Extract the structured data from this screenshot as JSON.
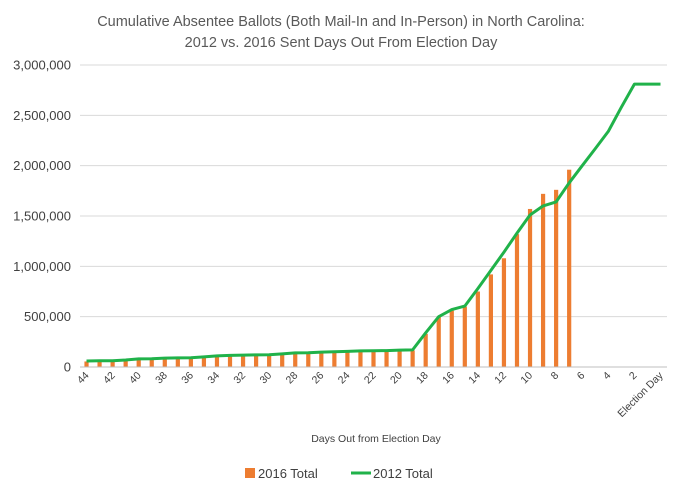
{
  "chart_data": {
    "type": "bar+line",
    "title": [
      "Cumulative Absentee Ballots (Both Mail-In and In-Person) in North Carolina:",
      "2012 vs. 2016 Sent Days Out From Election Day"
    ],
    "xlabel": "Days Out from Election Day",
    "ylabel": "",
    "ylim": [
      0,
      3000000
    ],
    "yticks": [
      0,
      500000,
      1000000,
      1500000,
      2000000,
      2500000,
      3000000
    ],
    "ytick_labels": [
      "0",
      "500,000",
      "1,000,000",
      "1,500,000",
      "2,000,000",
      "2,500,000",
      "3,000,000"
    ],
    "categories": [
      "44",
      "43",
      "42",
      "41",
      "40",
      "39",
      "38",
      "37",
      "36",
      "35",
      "34",
      "33",
      "32",
      "31",
      "30",
      "29",
      "28",
      "27",
      "26",
      "25",
      "24",
      "23",
      "22",
      "21",
      "20",
      "19",
      "18",
      "17",
      "16",
      "15",
      "14",
      "13",
      "12",
      "11",
      "10",
      "9",
      "8",
      "7",
      "6",
      "5",
      "4",
      "3",
      "2",
      "1",
      "Election Day"
    ],
    "x_tick_labels": [
      "44",
      "42",
      "40",
      "38",
      "36",
      "34",
      "32",
      "30",
      "28",
      "26",
      "24",
      "22",
      "20",
      "18",
      "16",
      "14",
      "12",
      "10",
      "8",
      "6",
      "4",
      "2",
      "Election Day"
    ],
    "series": [
      {
        "name": "2016 Total",
        "kind": "bar",
        "color": "#ED7D31",
        "values": [
          55000,
          60000,
          62000,
          68000,
          75000,
          80000,
          85000,
          88000,
          92000,
          98000,
          105000,
          110000,
          115000,
          118000,
          120000,
          125000,
          130000,
          135000,
          140000,
          145000,
          150000,
          152000,
          155000,
          158000,
          160000,
          165000,
          330000,
          500000,
          560000,
          600000,
          750000,
          920000,
          1080000,
          1320000,
          1570000,
          1720000,
          1760000,
          1960000,
          null,
          null,
          null,
          null,
          null,
          null,
          null
        ]
      },
      {
        "name": "2012 Total",
        "kind": "line",
        "color": "#20B24A",
        "values": [
          60000,
          62000,
          63000,
          70000,
          80000,
          82000,
          88000,
          90000,
          92000,
          100000,
          110000,
          115000,
          118000,
          120000,
          122000,
          130000,
          140000,
          142000,
          148000,
          152000,
          155000,
          160000,
          162000,
          163000,
          168000,
          170000,
          340000,
          500000,
          570000,
          605000,
          780000,
          960000,
          1140000,
          1330000,
          1510000,
          1600000,
          1640000,
          1830000,
          2000000,
          2170000,
          2340000,
          2580000,
          2810000,
          2810000,
          2810000
        ]
      }
    ],
    "legend_position": "bottom",
    "grid": true
  }
}
